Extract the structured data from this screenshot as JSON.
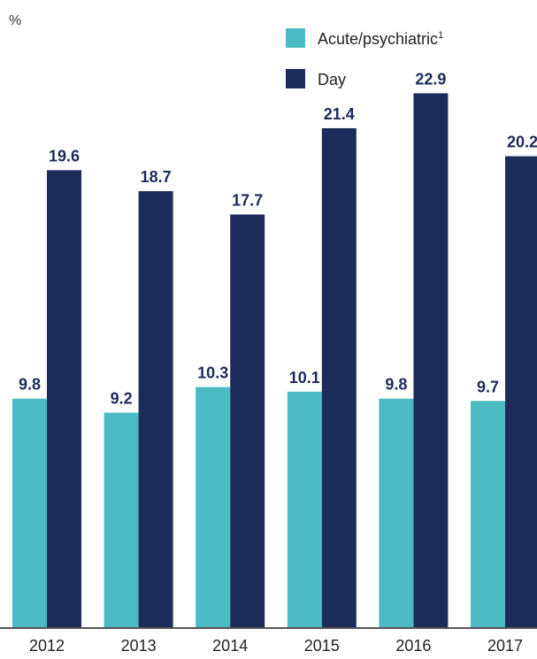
{
  "chart_data": {
    "type": "bar",
    "unit_label": "%",
    "categories": [
      "2012",
      "2013",
      "2014",
      "2015",
      "2016",
      "2017"
    ],
    "series": [
      {
        "name": "Acute/psychiatric",
        "name_superscript": "1",
        "color": "#4dbbc4",
        "values": [
          9.8,
          9.2,
          10.3,
          10.1,
          9.8,
          9.7
        ]
      },
      {
        "name": "Day",
        "name_superscript": "",
        "color": "#1c2b5a",
        "values": [
          19.6,
          18.7,
          17.7,
          21.4,
          22.9,
          20.2
        ]
      }
    ],
    "data_label_color": "#1c2b5a",
    "ylim": [
      0,
      26.9
    ],
    "grid": false,
    "legend_position": "top-right"
  }
}
